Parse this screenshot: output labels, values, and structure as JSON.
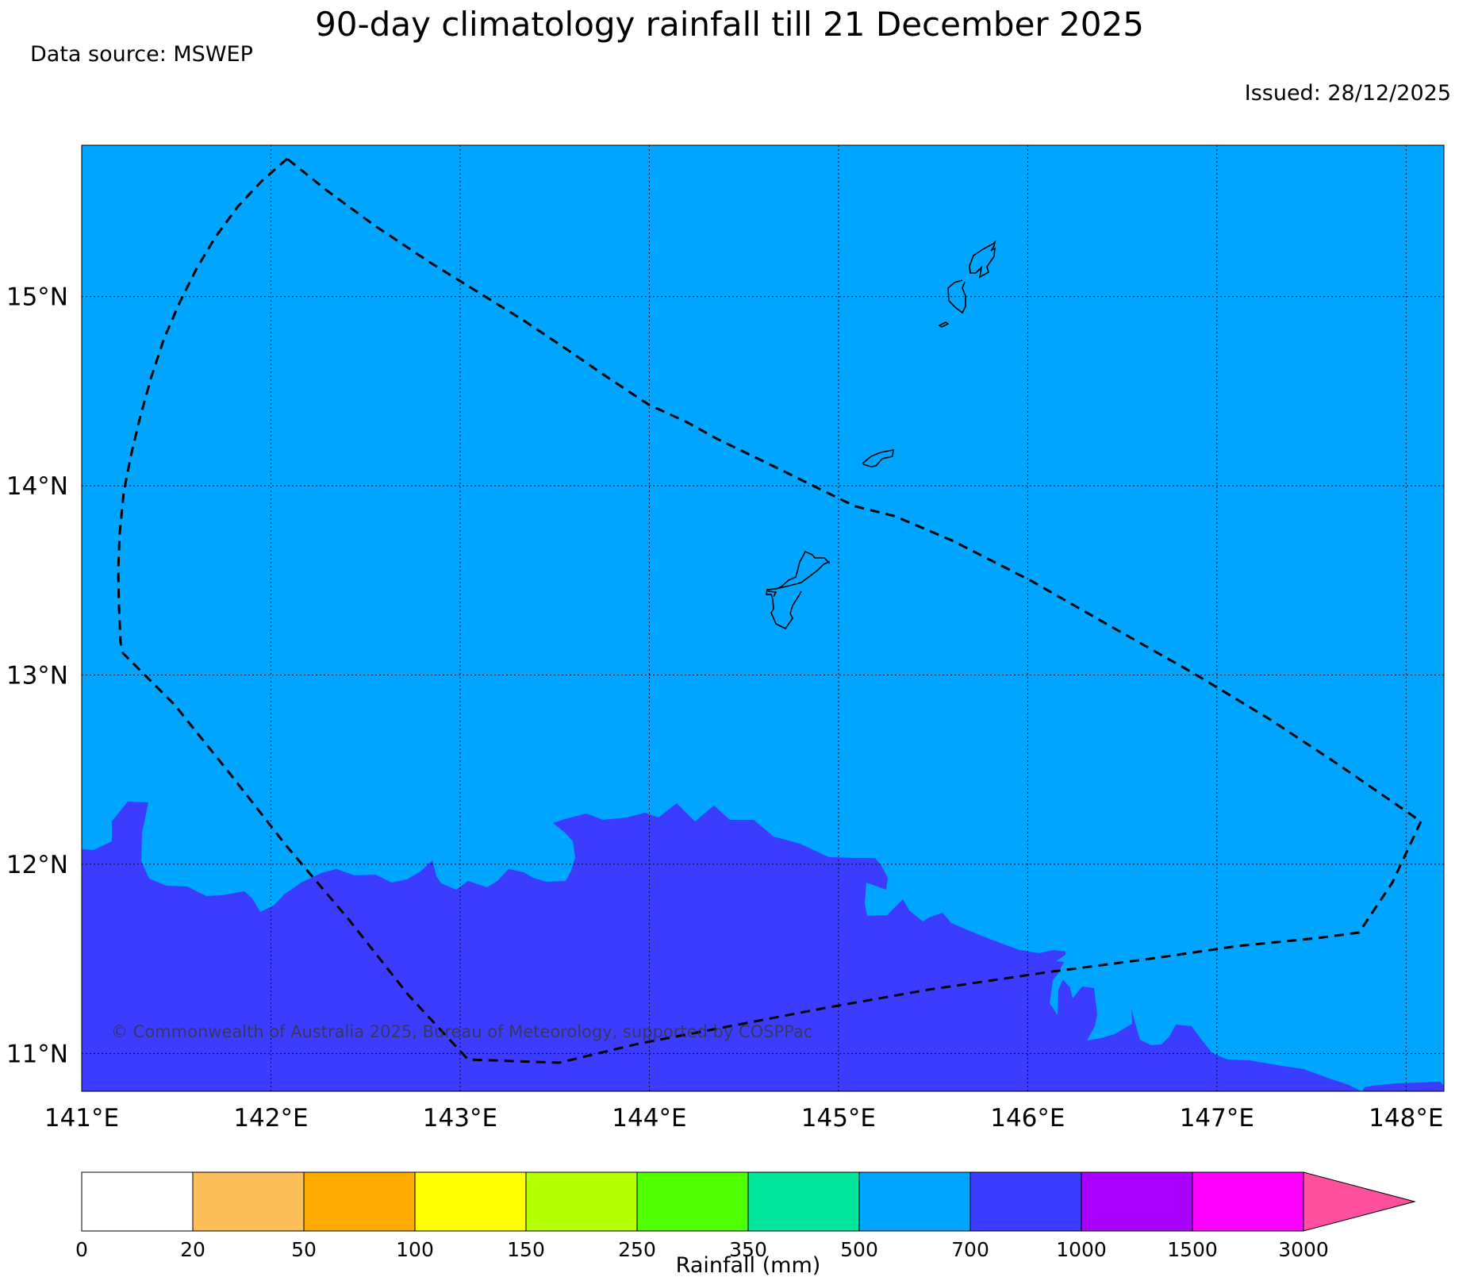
{
  "header": {
    "title": "90-day climatology rainfall till 21 December 2025",
    "source": "Data source: MSWEP",
    "issued": "Issued: 28/12/2025"
  },
  "map": {
    "lon_range": [
      141.0,
      148.2
    ],
    "lat_range": [
      10.8,
      15.8
    ],
    "lon_ticks": [
      {
        "value": 141,
        "label": "141°E"
      },
      {
        "value": 142,
        "label": "142°E"
      },
      {
        "value": 143,
        "label": "143°E"
      },
      {
        "value": 144,
        "label": "144°E"
      },
      {
        "value": 145,
        "label": "145°E"
      },
      {
        "value": 146,
        "label": "146°E"
      },
      {
        "value": 147,
        "label": "147°E"
      },
      {
        "value": 148,
        "label": "148°E"
      }
    ],
    "lat_ticks": [
      {
        "value": 11,
        "label": "11°N"
      },
      {
        "value": 12,
        "label": "12°N"
      },
      {
        "value": 13,
        "label": "13°N"
      },
      {
        "value": 14,
        "label": "14°N"
      },
      {
        "value": 15,
        "label": "15°N"
      }
    ],
    "background_class_color": "#00a5ff",
    "southern_class_color": "#3c3cff",
    "copyright": "© Commonwealth of Australia 2025, Bureau of Meteorology, supported by COSPPac"
  },
  "colorbar": {
    "label": "Rainfall (mm)",
    "bins": [
      {
        "label": "0",
        "color": "#ffffff"
      },
      {
        "label": "20",
        "color": "#fdbf5a"
      },
      {
        "label": "50",
        "color": "#ffaa00"
      },
      {
        "label": "100",
        "color": "#ffff00"
      },
      {
        "label": "150",
        "color": "#b4ff00"
      },
      {
        "label": "250",
        "color": "#50ff00"
      },
      {
        "label": "350",
        "color": "#00e69b"
      },
      {
        "label": "500",
        "color": "#00a5ff"
      },
      {
        "label": "700",
        "color": "#3c3cff"
      },
      {
        "label": "1000",
        "color": "#aa00ff"
      },
      {
        "label": "1500",
        "color": "#ff00ff"
      },
      {
        "label": "3000",
        "color": "#ff50a0"
      }
    ]
  }
}
